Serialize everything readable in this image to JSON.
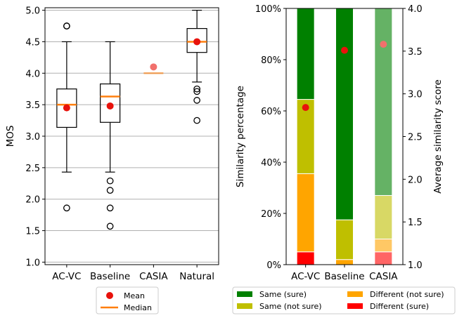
{
  "chart_data": [
    {
      "type": "box",
      "ylabel": "MOS",
      "ylim": [
        0.96,
        5.04
      ],
      "yticks": [
        "1.0",
        "1.5",
        "2.0",
        "2.5",
        "3.0",
        "3.5",
        "4.0",
        "4.5",
        "5.0"
      ],
      "grid": "horizontal",
      "categories": [
        "AC-VC",
        "Baseline",
        "CASIA",
        "Natural"
      ],
      "boxes": [
        {
          "q1": 3.14,
          "median": 3.5,
          "q3": 3.75,
          "whisker_low": 2.43,
          "whisker_high": 4.5,
          "mean": 3.45,
          "outliers": [
            4.75,
            4.75,
            1.86
          ],
          "faded": false
        },
        {
          "q1": 3.22,
          "median": 3.63,
          "q3": 3.83,
          "whisker_low": 2.43,
          "whisker_high": 4.5,
          "mean": 3.48,
          "outliers": [
            2.29,
            2.14,
            1.86,
            1.57
          ],
          "faded": false
        },
        {
          "q1": 4.0,
          "median": 4.0,
          "q3": 4.0,
          "whisker_low": 4.0,
          "whisker_high": 4.0,
          "mean": 4.1,
          "outliers": [],
          "faded": true
        },
        {
          "q1": 4.33,
          "median": 4.5,
          "q3": 4.71,
          "whisker_low": 3.86,
          "whisker_high": 5.0,
          "mean": 4.5,
          "outliers": [
            3.75,
            3.71,
            3.57,
            3.25
          ],
          "faded": false
        }
      ],
      "legend": {
        "position": "bottom",
        "items": [
          "Mean",
          "Median"
        ]
      },
      "colors": {
        "mean": "#e8120c",
        "median": "#ff7f0e",
        "grid": "#b0b0b0"
      }
    },
    {
      "type": "stacked-bar",
      "ylabel": "Similarity percentage",
      "ylim": [
        0,
        100
      ],
      "yticks": [
        "0%",
        "20%",
        "40%",
        "60%",
        "80%",
        "100%"
      ],
      "y2label": "Average similarity score",
      "y2lim": [
        1.0,
        4.0
      ],
      "y2ticks": [
        "1.0",
        "1.5",
        "2.0",
        "2.5",
        "3.0",
        "3.5",
        "4.0"
      ],
      "categories": [
        "AC-VC",
        "Baseline",
        "CASIA"
      ],
      "faded": [
        false,
        false,
        true
      ],
      "series": [
        {
          "name": "Different (sure)",
          "color": "#ff0000",
          "values": [
            5,
            0,
            5
          ]
        },
        {
          "name": "Different (not sure)",
          "color": "#ffa500",
          "values": [
            30.5,
            2,
            5
          ]
        },
        {
          "name": "Same (not sure)",
          "color": "#bfbf00",
          "values": [
            29,
            15.5,
            17
          ]
        },
        {
          "name": "Same (sure)",
          "color": "#008000",
          "values": [
            35.5,
            82.5,
            73
          ]
        }
      ],
      "average_score": [
        2.84,
        3.51,
        3.58
      ],
      "average_color": "#e8120c",
      "legend": {
        "position": "bottom",
        "items": [
          "Same (sure)",
          "Different (not sure)",
          "Same (not sure)",
          "Different (sure)"
        ]
      }
    }
  ]
}
